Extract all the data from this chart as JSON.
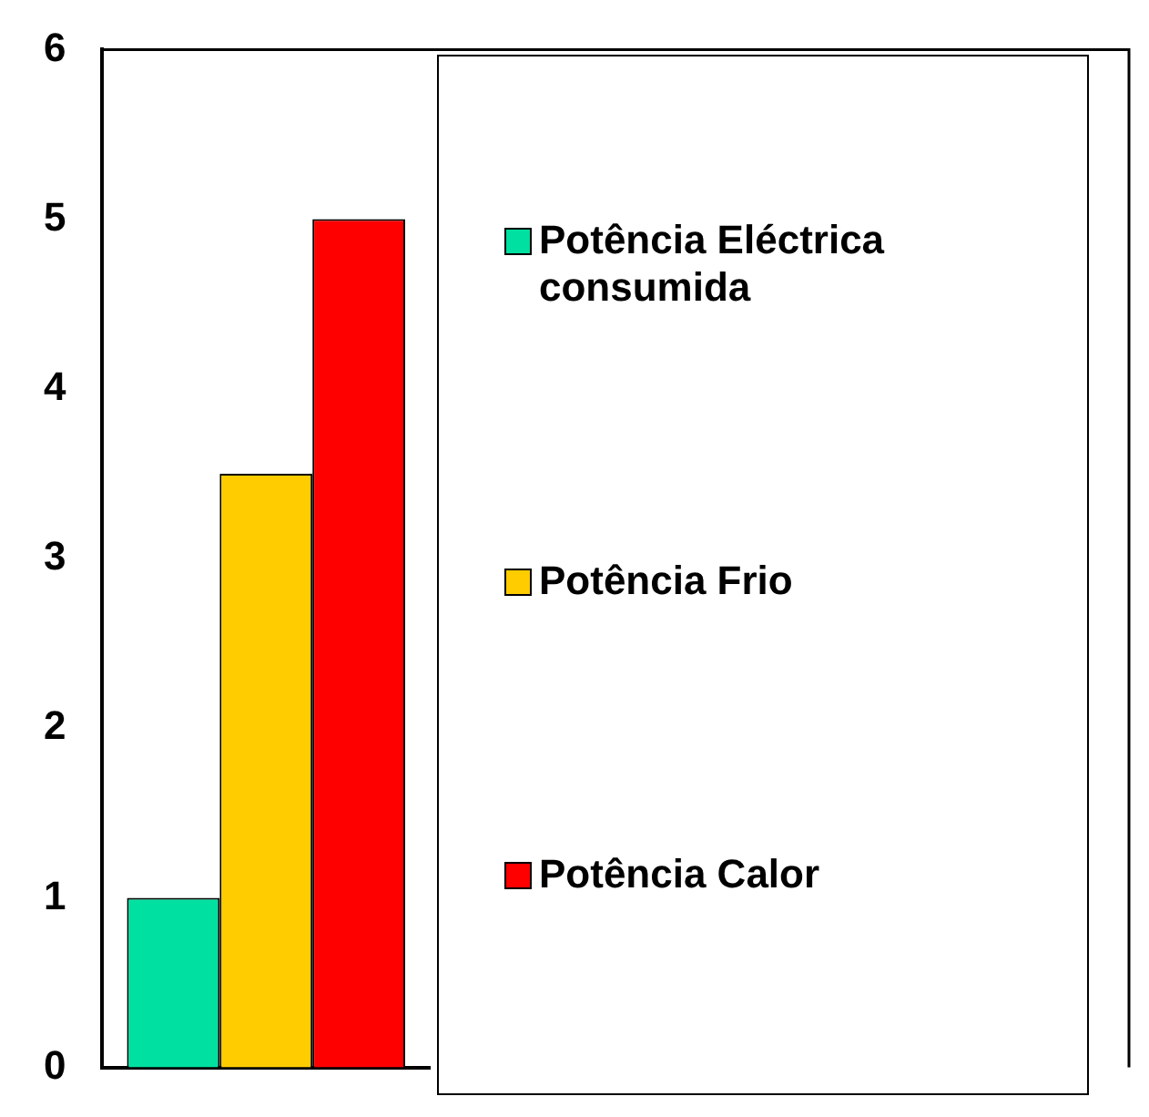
{
  "chart_data": {
    "type": "bar",
    "categories": [
      null
    ],
    "series": [
      {
        "name": "Potência Eléctrica consumida",
        "color": "#00e0a0",
        "values": [
          1
        ]
      },
      {
        "name": "Potência Frio",
        "color": "#ffcc00",
        "values": [
          3.5
        ]
      },
      {
        "name": "Potência Calor",
        "color": "#ff0000",
        "values": [
          5
        ]
      }
    ],
    "ylim": [
      0,
      6
    ],
    "yticks": [
      0,
      1,
      2,
      3,
      4,
      5,
      6
    ],
    "grid": false,
    "legend": "right"
  }
}
